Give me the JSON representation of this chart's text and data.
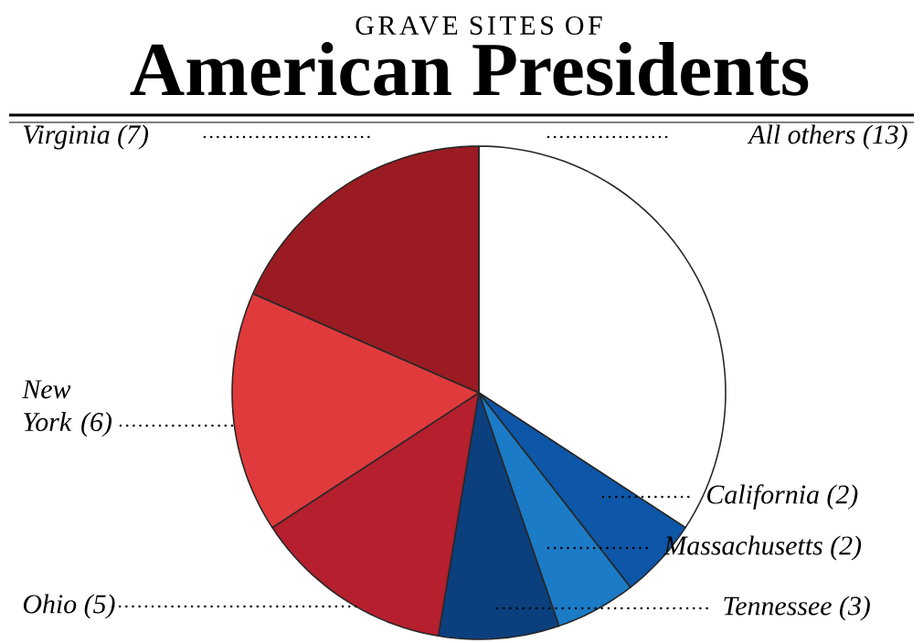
{
  "chart_data": {
    "type": "pie",
    "title": "American Presidents",
    "subtitle": "GRAVE SITES OF",
    "categories": [
      "All others",
      "California",
      "Massachusetts",
      "Tennessee",
      "Ohio",
      "New York",
      "Virginia"
    ],
    "values": [
      13,
      2,
      2,
      3,
      5,
      6,
      7
    ],
    "value_labels": [
      "(13)",
      "(2)",
      "(2)",
      "(3)",
      "(5)",
      "(6)",
      "(7)"
    ],
    "colors": [
      "#ffffff",
      "#0d56a8",
      "#1b7bc6",
      "#0b3f7e",
      "#b51f2e",
      "#e03a3c",
      "#9a1b22"
    ]
  }
}
